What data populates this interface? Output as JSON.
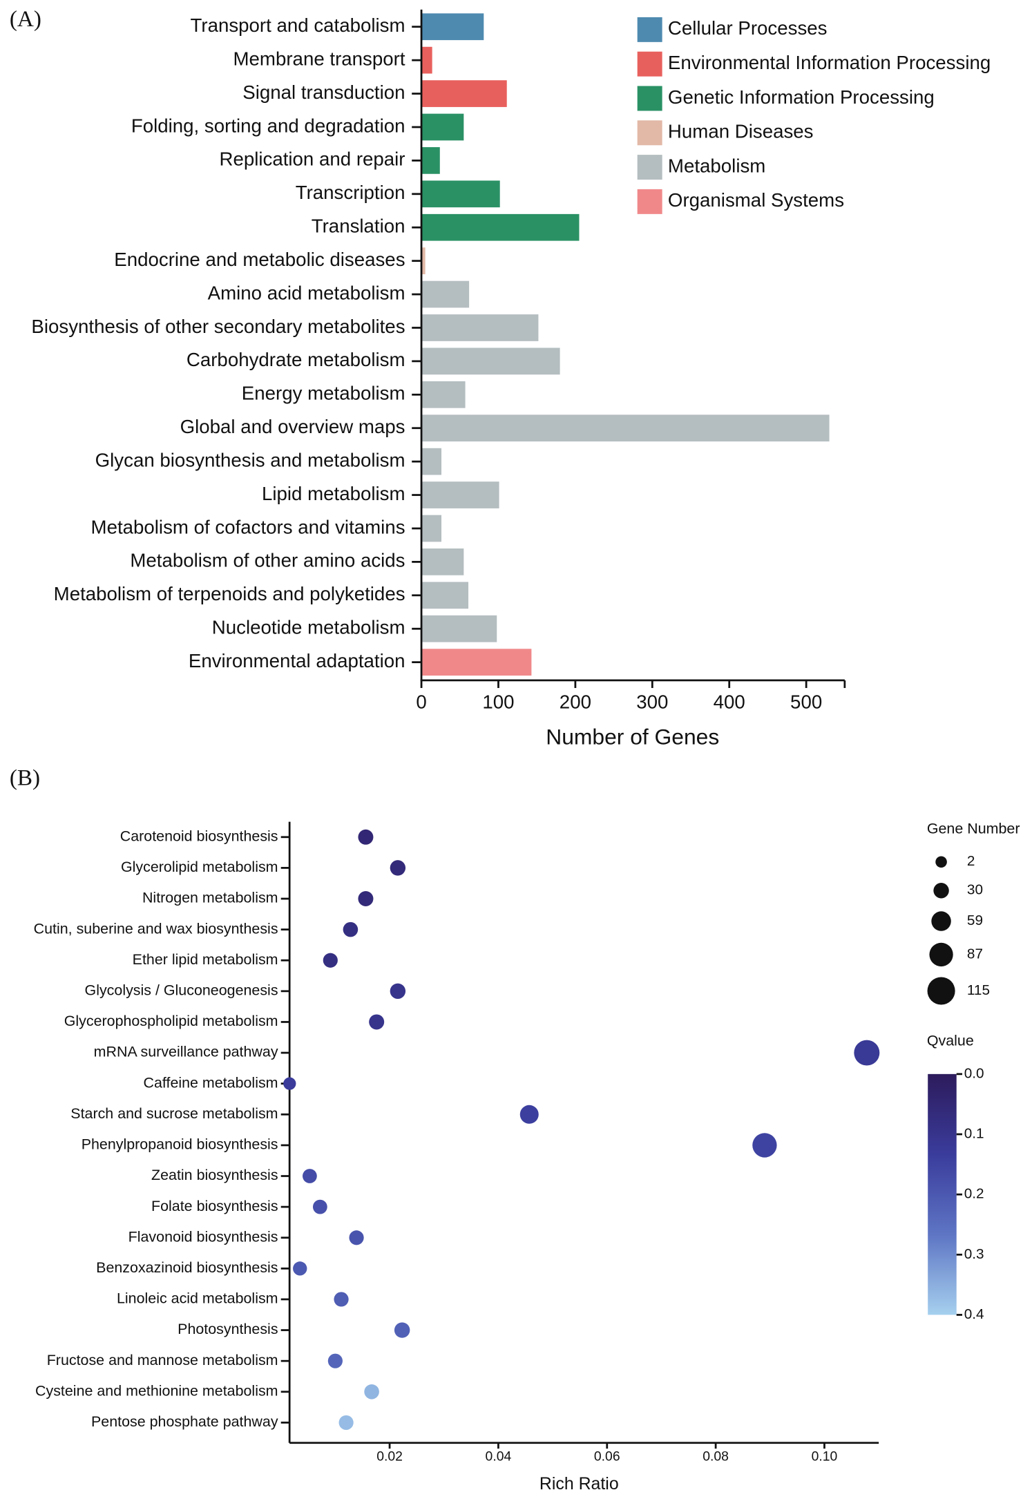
{
  "chart_data": [
    {
      "type": "bar",
      "orientation": "horizontal",
      "panel_label": "(A)",
      "categories": [
        "Transport and catabolism",
        "Membrane transport",
        "Signal transduction",
        "Folding, sorting and degradation",
        "Replication and repair",
        "Transcription",
        "Translation",
        "Endocrine and metabolic diseases",
        "Amino acid metabolism",
        "Biosynthesis of other secondary metabolites",
        "Carbohydrate metabolism",
        "Energy metabolism",
        "Global and overview maps",
        "Glycan biosynthesis and metabolism",
        "Lipid metabolism",
        "Metabolism of cofactors and vitamins",
        "Metabolism of other amino acids",
        "Metabolism of terpenoids and polyketides",
        "Nucleotide metabolism",
        "Environmental adaptation"
      ],
      "series": [
        {
          "name": "Cellular Processes",
          "color": "#4e8ab0",
          "values": [
            81,
            null,
            null,
            null,
            null,
            null,
            null,
            null,
            null,
            null,
            null,
            null,
            null,
            null,
            null,
            null,
            null,
            null,
            null,
            null
          ]
        },
        {
          "name": "Environmental Information Processing",
          "color": "#e8605d",
          "values": [
            null,
            14,
            111,
            null,
            null,
            null,
            null,
            null,
            null,
            null,
            null,
            null,
            null,
            null,
            null,
            null,
            null,
            null,
            null,
            null
          ]
        },
        {
          "name": "Genetic Information Processing",
          "color": "#2a9165",
          "values": [
            null,
            null,
            null,
            55,
            24,
            102,
            205,
            null,
            null,
            null,
            null,
            null,
            null,
            null,
            null,
            null,
            null,
            null,
            null,
            null
          ]
        },
        {
          "name": "Human Diseases",
          "color": "#e2b8a6",
          "values": [
            null,
            null,
            null,
            null,
            null,
            null,
            null,
            5,
            null,
            null,
            null,
            null,
            null,
            null,
            null,
            null,
            null,
            null,
            null,
            null
          ]
        },
        {
          "name": "Metabolism",
          "color": "#b4bdc0",
          "values": [
            null,
            null,
            null,
            null,
            null,
            null,
            null,
            null,
            62,
            152,
            180,
            57,
            530,
            26,
            101,
            26,
            55,
            61,
            98,
            null
          ]
        },
        {
          "name": "Organismal Systems",
          "color": "#f0888a",
          "values": [
            null,
            null,
            null,
            null,
            null,
            null,
            null,
            null,
            null,
            null,
            null,
            null,
            null,
            null,
            null,
            null,
            null,
            null,
            null,
            143
          ]
        }
      ],
      "xlabel": "Number of Genes",
      "xlim": [
        0,
        550
      ],
      "xticks": [
        0,
        100,
        200,
        300,
        400,
        500
      ],
      "legend": "top-right"
    },
    {
      "type": "bubble",
      "panel_label": "(B)",
      "categories": [
        "Carotenoid biosynthesis",
        "Glycerolipid metabolism",
        "Nitrogen metabolism",
        "Cutin, suberine and wax biosynthesis",
        "Ether lipid metabolism",
        "Glycolysis / Gluconeogenesis",
        "Glycerophospholipid metabolism",
        "mRNA surveillance pathway",
        "Caffeine metabolism",
        "Starch and sucrose metabolism",
        "Phenylpropanoid biosynthesis",
        "Zeatin biosynthesis",
        "Folate biosynthesis",
        "Flavonoid biosynthesis",
        "Benzoxazinoid biosynthesis",
        "Linoleic acid metabolism",
        "Photosynthesis",
        "Fructose and mannose metabolism",
        "Cysteine and methionine metabolism",
        "Pentose phosphate pathway"
      ],
      "x": [
        0.0156,
        0.0215,
        0.0156,
        0.0128,
        0.0091,
        0.0215,
        0.0176,
        0.1078,
        0.0016,
        0.0457,
        0.089,
        0.0053,
        0.0072,
        0.0139,
        0.0035,
        0.0111,
        0.0223,
        0.01,
        0.0167,
        0.012
      ],
      "sizes": [
        28,
        30,
        28,
        26,
        24,
        30,
        28,
        100,
        10,
        52,
        92,
        22,
        22,
        24,
        20,
        24,
        30,
        24,
        26,
        24
      ],
      "qvalues": [
        0.05,
        0.06,
        0.06,
        0.08,
        0.08,
        0.1,
        0.1,
        0.12,
        0.13,
        0.14,
        0.15,
        0.17,
        0.18,
        0.19,
        0.2,
        0.21,
        0.22,
        0.23,
        0.36,
        0.37
      ],
      "xlabel": "Rich Ratio",
      "xlim": [
        0.0015,
        0.11
      ],
      "xticks": [
        0.02,
        0.04,
        0.06,
        0.08,
        {
          "value": 0.1,
          "label": "0.10"
        }
      ],
      "size_title": "Gene Number",
      "size_ticks": [
        2,
        30,
        59,
        87,
        115
      ],
      "color_title": "Qvalue",
      "clim": [
        0,
        0.4
      ],
      "cticks": [
        {
          "value": 0,
          "label": "0.0"
        },
        0.1,
        0.2,
        0.3,
        0.4
      ],
      "colormap": [
        "#2d1b5c",
        "#3a3c9c",
        "#5e75c4",
        "#a6d0ee"
      ]
    }
  ]
}
